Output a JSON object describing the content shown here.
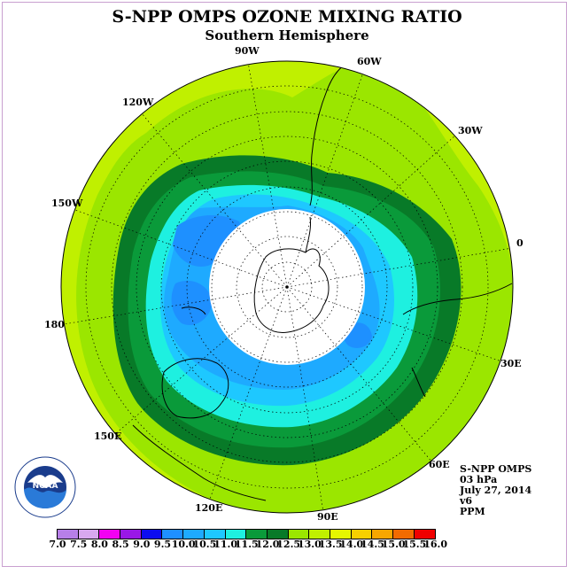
{
  "title": "S-NPP OMPS OZONE MIXING RATIO",
  "subtitle": "Southern Hemisphere",
  "longitude_labels": [
    "90W",
    "60W",
    "30W",
    "0",
    "30E",
    "60E",
    "90E",
    "120E",
    "150E",
    "180",
    "150W",
    "120W"
  ],
  "info": {
    "instrument": "S-NPP OMPS",
    "level": "03 hPa",
    "date": "July 27, 2014",
    "version": "v6",
    "units": "PPM"
  },
  "colorbar": {
    "ticks": [
      "7.0",
      "7.5",
      "8.0",
      "8.5",
      "9.0",
      "9.5",
      "10.0",
      "10.5",
      "11.0",
      "11.5",
      "12.0",
      "12.5",
      "13.0",
      "13.5",
      "14.0",
      "14.5",
      "15.0",
      "15.5",
      "16.0"
    ],
    "colors": [
      "#b77fe8",
      "#d8a8ef",
      "#f200f2",
      "#9a18e6",
      "#0c0cf0",
      "#1e90ff",
      "#1eaaff",
      "#1ec8ff",
      "#1ef0e0",
      "#0a9a3a",
      "#087a28",
      "#9be600",
      "#c0f000",
      "#e6f700",
      "#f7d000",
      "#f7a600",
      "#f26b00",
      "#f00000",
      "#8b5a3c"
    ]
  },
  "logo": {
    "name": "noaa-logo"
  }
}
